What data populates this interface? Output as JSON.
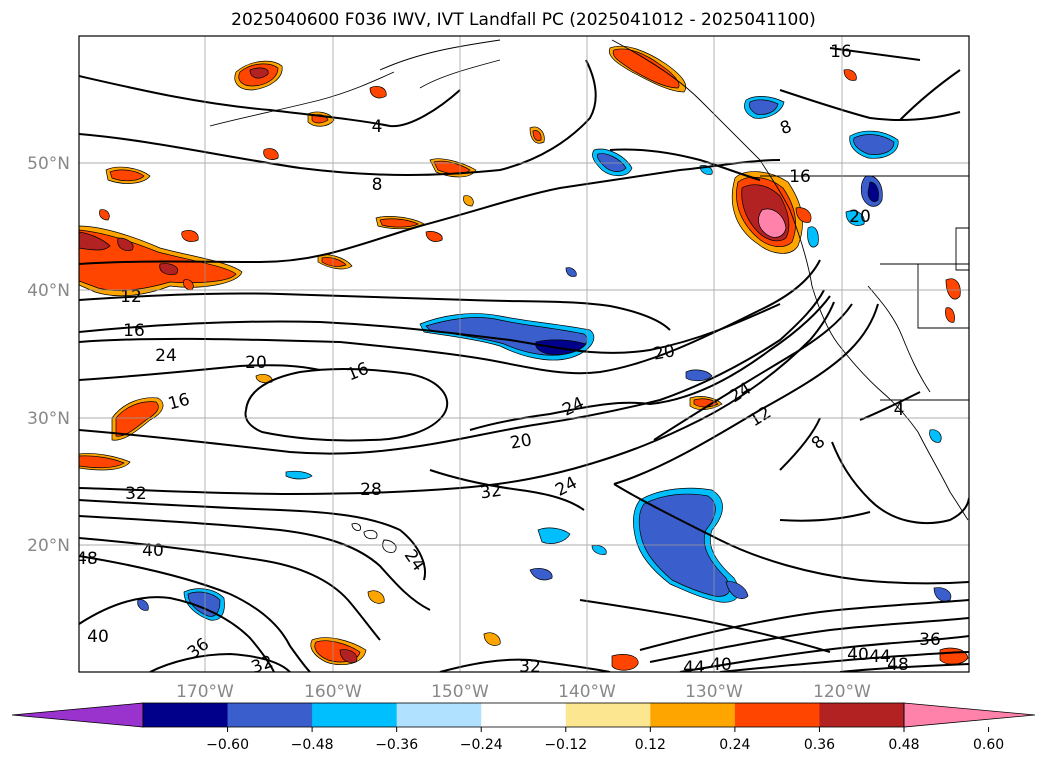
{
  "title": "2025040600 F036 IWV, IVT Landfall PC (2025041012 - 2025041100)",
  "map": {
    "lat_labels": [
      "50°N",
      "40°N",
      "30°N",
      "20°N"
    ],
    "lon_labels": [
      "170°W",
      "160°W",
      "150°W",
      "140°W",
      "130°W",
      "120°W"
    ],
    "contour_labels": [
      "4",
      "8",
      "16",
      "12",
      "16",
      "24",
      "20",
      "16",
      "16",
      "20",
      "24",
      "20",
      "24",
      "12",
      "8",
      "4",
      "32",
      "28",
      "32",
      "24",
      "24",
      "48",
      "40",
      "40",
      "36",
      "32",
      "32",
      "40",
      "44",
      "40",
      "44",
      "48",
      "36",
      "20",
      "8",
      "16"
    ]
  },
  "colorbar": {
    "tick_labels": [
      "−0.60",
      "−0.48",
      "−0.36",
      "−0.24",
      "−0.12",
      "0.12",
      "0.24",
      "0.36",
      "0.48",
      "0.60"
    ],
    "colors": [
      "#9a32cd",
      "#00008b",
      "#3a5fcd",
      "#00bfff",
      "#b0e2ff",
      "#ffffff",
      "#fce68f",
      "#ffa500",
      "#ff4500",
      "#b22222",
      "#ff82ab"
    ]
  }
}
